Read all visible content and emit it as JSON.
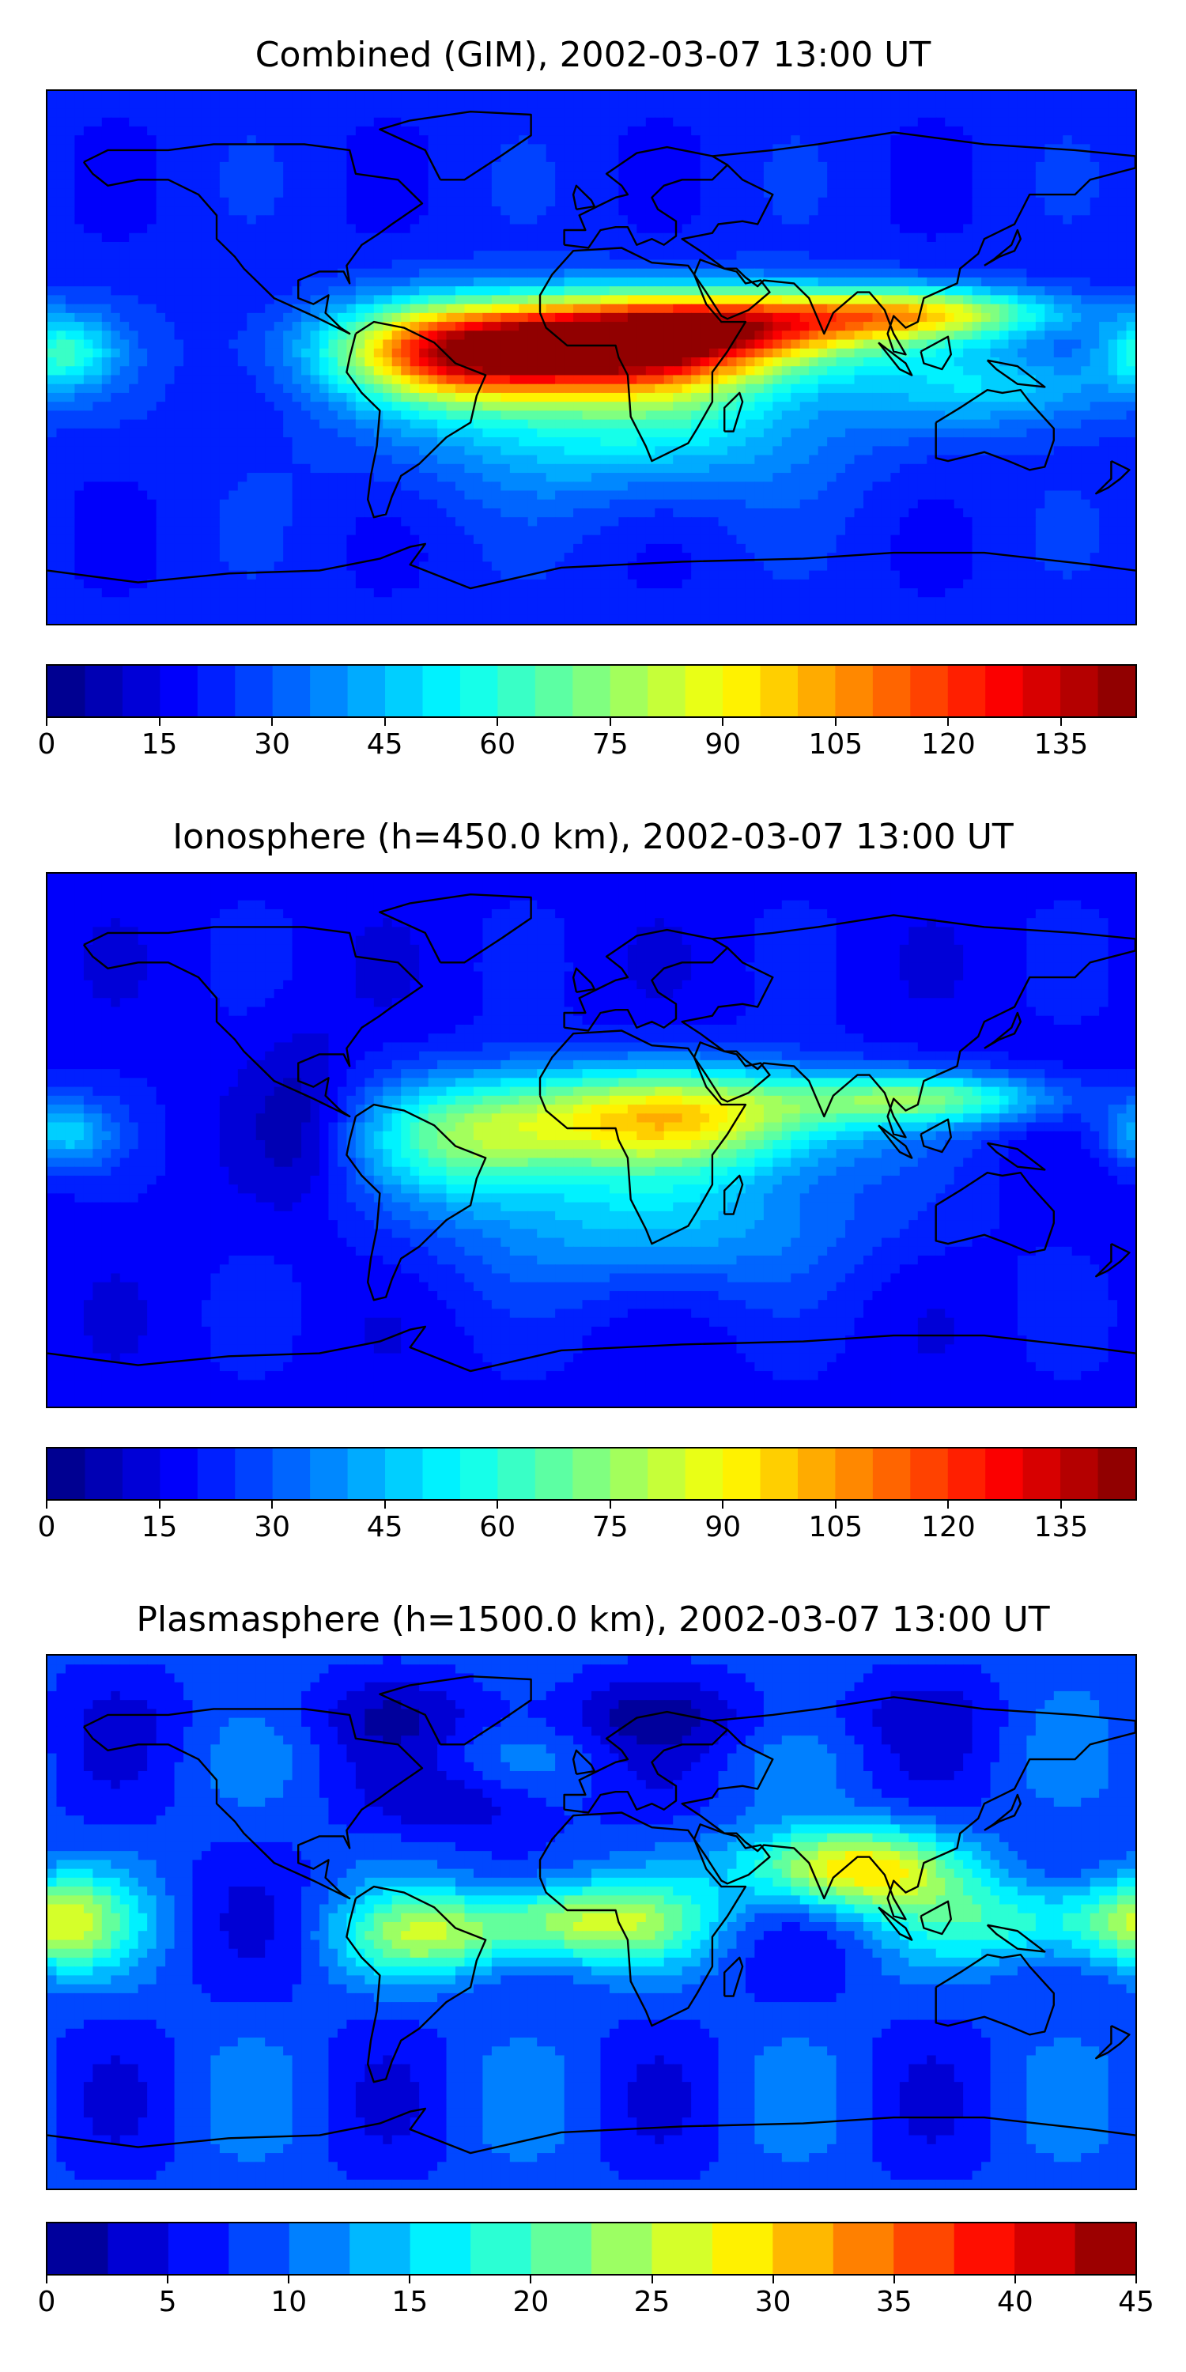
{
  "panels": [
    {
      "title": "Combined (GIM), 2002-03-07 13:00 UT",
      "colorbar": {
        "min": 0,
        "max": 145,
        "n_levels": 29,
        "ticks": [
          "0",
          "15",
          "30",
          "45",
          "60",
          "75",
          "90",
          "105",
          "120",
          "135"
        ],
        "tick_values": [
          0,
          15,
          30,
          45,
          60,
          75,
          90,
          105,
          120,
          135
        ]
      },
      "field": {
        "background": 22,
        "blobs": [
          {
            "lon": 0,
            "lat": 4,
            "amp": 115,
            "sx": 48,
            "sy": 11
          },
          {
            "lon": 55,
            "lat": 12,
            "amp": 55,
            "sx": 40,
            "sy": 8
          },
          {
            "lon": 110,
            "lat": 15,
            "amp": 50,
            "sx": 35,
            "sy": 6
          },
          {
            "lon": -45,
            "lat": 0,
            "amp": 45,
            "sx": 25,
            "sy": 12
          },
          {
            "lon": 10,
            "lat": -20,
            "amp": 35,
            "sx": 50,
            "sy": 18
          },
          {
            "lon": -175,
            "lat": 2,
            "amp": 35,
            "sx": 12,
            "sy": 8
          },
          {
            "lon": 140,
            "lat": -10,
            "amp": 25,
            "sx": 30,
            "sy": 10
          }
        ]
      }
    },
    {
      "title": "Ionosphere  (h=450.0 km), 2002-03-07 13:00 UT",
      "colorbar": {
        "min": 0,
        "max": 145,
        "n_levels": 29,
        "ticks": [
          "0",
          "15",
          "30",
          "45",
          "60",
          "75",
          "90",
          "105",
          "120",
          "135"
        ],
        "tick_values": [
          0,
          15,
          30,
          45,
          60,
          75,
          90,
          105,
          120,
          135
        ]
      },
      "field": {
        "background": 18,
        "blobs": [
          {
            "lon": 25,
            "lat": 8,
            "amp": 72,
            "sx": 42,
            "sy": 12
          },
          {
            "lon": 110,
            "lat": 14,
            "amp": 45,
            "sx": 32,
            "sy": 6
          },
          {
            "lon": -40,
            "lat": 0,
            "amp": 40,
            "sx": 25,
            "sy": 14
          },
          {
            "lon": 20,
            "lat": -25,
            "amp": 28,
            "sx": 50,
            "sy": 18
          },
          {
            "lon": -175,
            "lat": 2,
            "amp": 28,
            "sx": 12,
            "sy": 8
          },
          {
            "lon": -95,
            "lat": 5,
            "amp": -12,
            "sx": 12,
            "sy": 20
          }
        ]
      }
    },
    {
      "title": "Plasmasphere (h=1500.0 km), 2002-03-07 13:00 UT",
      "colorbar": {
        "min": 0,
        "max": 45,
        "n_levels": 18,
        "ticks": [
          "0",
          "5",
          "10",
          "15",
          "20",
          "25",
          "30",
          "35",
          "40",
          "45"
        ],
        "tick_values": [
          0,
          5,
          10,
          15,
          20,
          25,
          30,
          35,
          40,
          45
        ]
      },
      "field": {
        "background": 8,
        "blobs": [
          {
            "lon": 85,
            "lat": 18,
            "amp": 22,
            "sx": 25,
            "sy": 10
          },
          {
            "lon": -5,
            "lat": 0,
            "amp": 18,
            "sx": 28,
            "sy": 10
          },
          {
            "lon": -55,
            "lat": -5,
            "amp": 12,
            "sx": 20,
            "sy": 10
          },
          {
            "lon": 150,
            "lat": 0,
            "amp": 12,
            "sx": 30,
            "sy": 10
          },
          {
            "lon": -175,
            "lat": 0,
            "amp": 12,
            "sx": 15,
            "sy": 12
          },
          {
            "lon": -40,
            "lat": 40,
            "amp": -5,
            "sx": 20,
            "sy": 8
          },
          {
            "lon": 0,
            "lat": 70,
            "amp": -4,
            "sx": 80,
            "sy": 8
          }
        ]
      }
    }
  ],
  "colormap": "jet",
  "projection": "plate-carree",
  "lon_range": [
    -180,
    180
  ],
  "lat_range": [
    -90,
    90
  ]
}
